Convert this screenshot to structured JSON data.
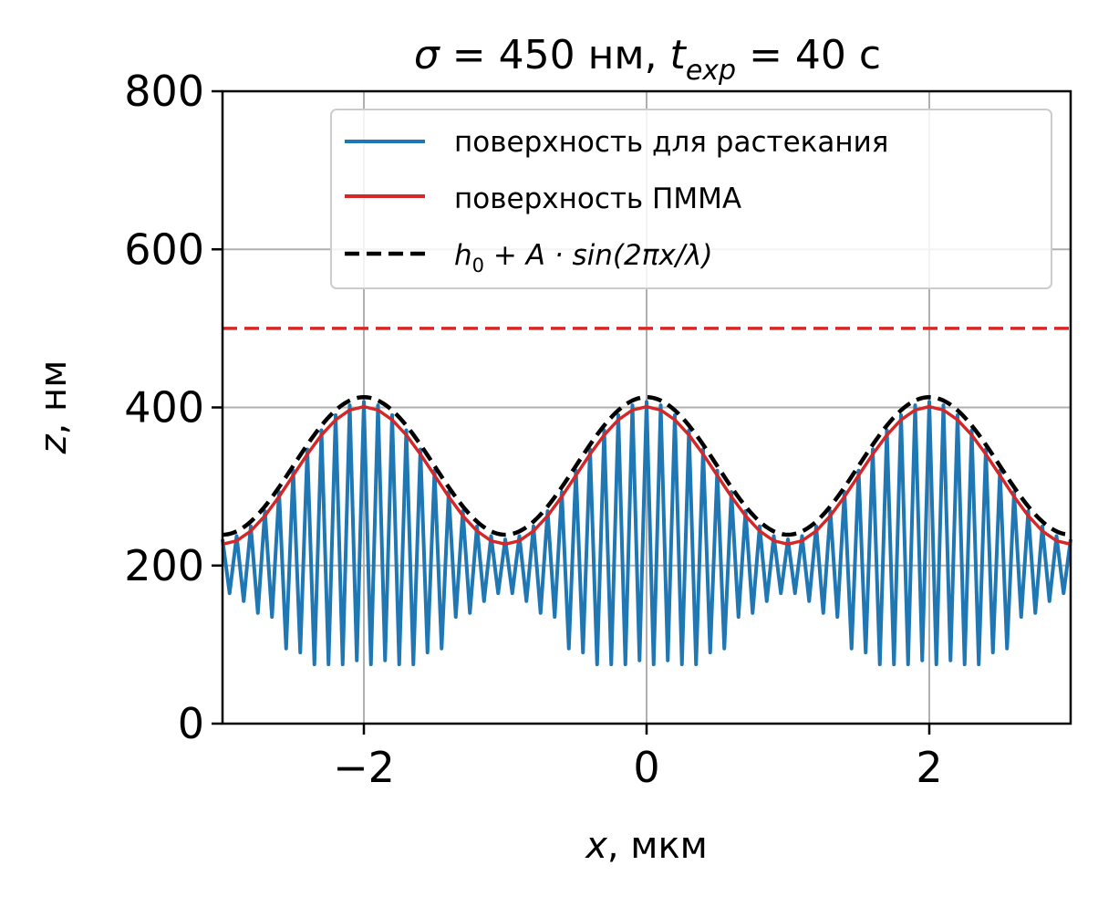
{
  "chart_data": {
    "type": "line",
    "title": {
      "sigma_symbol": "σ",
      "sigma_text": " = 450 нм, ",
      "t_symbol": "t",
      "t_subscript": "exp",
      "t_text": " = 40 с"
    },
    "xlabel": {
      "symbol": "x",
      "text": ", мкм"
    },
    "ylabel": {
      "symbol": "z",
      "text": ", нм"
    },
    "xlim": [
      -3,
      3
    ],
    "ylim": [
      0,
      800
    ],
    "xticks": [
      -2,
      0,
      2
    ],
    "xtick_labels": [
      "−2",
      "0",
      "2"
    ],
    "yticks": [
      0,
      200,
      400,
      600,
      800
    ],
    "ytick_labels": [
      "0",
      "200",
      "400",
      "600",
      "800"
    ],
    "grid": true,
    "legend_position": "upper-right",
    "colors": {
      "blue": "#1f77b4",
      "red": "#d62728",
      "black": "#000000",
      "grid": "#b0b0b0"
    },
    "series": [
      {
        "name": "поверхность для растекания",
        "color": "#1f77b4",
        "style": "solid",
        "note_values": "sawtooth spreading surface: peaks follow envelope, troughs alternate",
        "x": [
          -3.0,
          -2.9,
          -2.8,
          -2.7,
          -2.6,
          -2.5,
          -2.4,
          -2.3,
          -2.2,
          -2.1,
          -2.0,
          -1.9,
          -1.8,
          -1.7,
          -1.6,
          -1.5,
          -1.4,
          -1.3,
          -1.2,
          -1.1,
          -1.0,
          -0.9,
          -0.8,
          -0.7,
          -0.6,
          -0.5,
          -0.4,
          -0.3,
          -0.2,
          -0.1,
          0.0,
          0.1,
          0.2,
          0.3,
          0.4,
          0.5,
          0.6,
          0.7,
          0.8,
          0.9,
          1.0,
          1.1,
          1.2,
          1.3,
          1.4,
          1.5,
          1.6,
          1.7,
          1.8,
          1.9,
          2.0,
          2.1,
          2.2,
          2.3,
          2.4,
          2.5,
          2.6,
          2.7,
          2.8,
          2.9,
          3.0
        ],
        "y_low": [
          165,
          155,
          140,
          135,
          95,
          90,
          75,
          75,
          75,
          80,
          75,
          80,
          75,
          75,
          90,
          95,
          135,
          140,
          155,
          165,
          165,
          155,
          140,
          135,
          95,
          90,
          75,
          75,
          75,
          80,
          75,
          80,
          75,
          75,
          90,
          95,
          135,
          140,
          155,
          165,
          165,
          155,
          140,
          135,
          95,
          90,
          75,
          75,
          75,
          80,
          75,
          80,
          75,
          75,
          90,
          95,
          135,
          140,
          155,
          165,
          165
        ]
      },
      {
        "name": "поверхность ПММА",
        "color": "#d62728",
        "style": "solid"
      },
      {
        "name": "h0 + A·sin(2πx/λ)",
        "label_parts": {
          "h": "h",
          "sub0": "0",
          "rest": " + A · sin(2πx/λ)"
        },
        "color": "#000000",
        "style": "dashed",
        "h0": 320,
        "A": 87,
        "lambda": 2
      },
      {
        "name": "",
        "color": "#d62728",
        "style": "dashed",
        "constant_y": 500
      }
    ]
  }
}
